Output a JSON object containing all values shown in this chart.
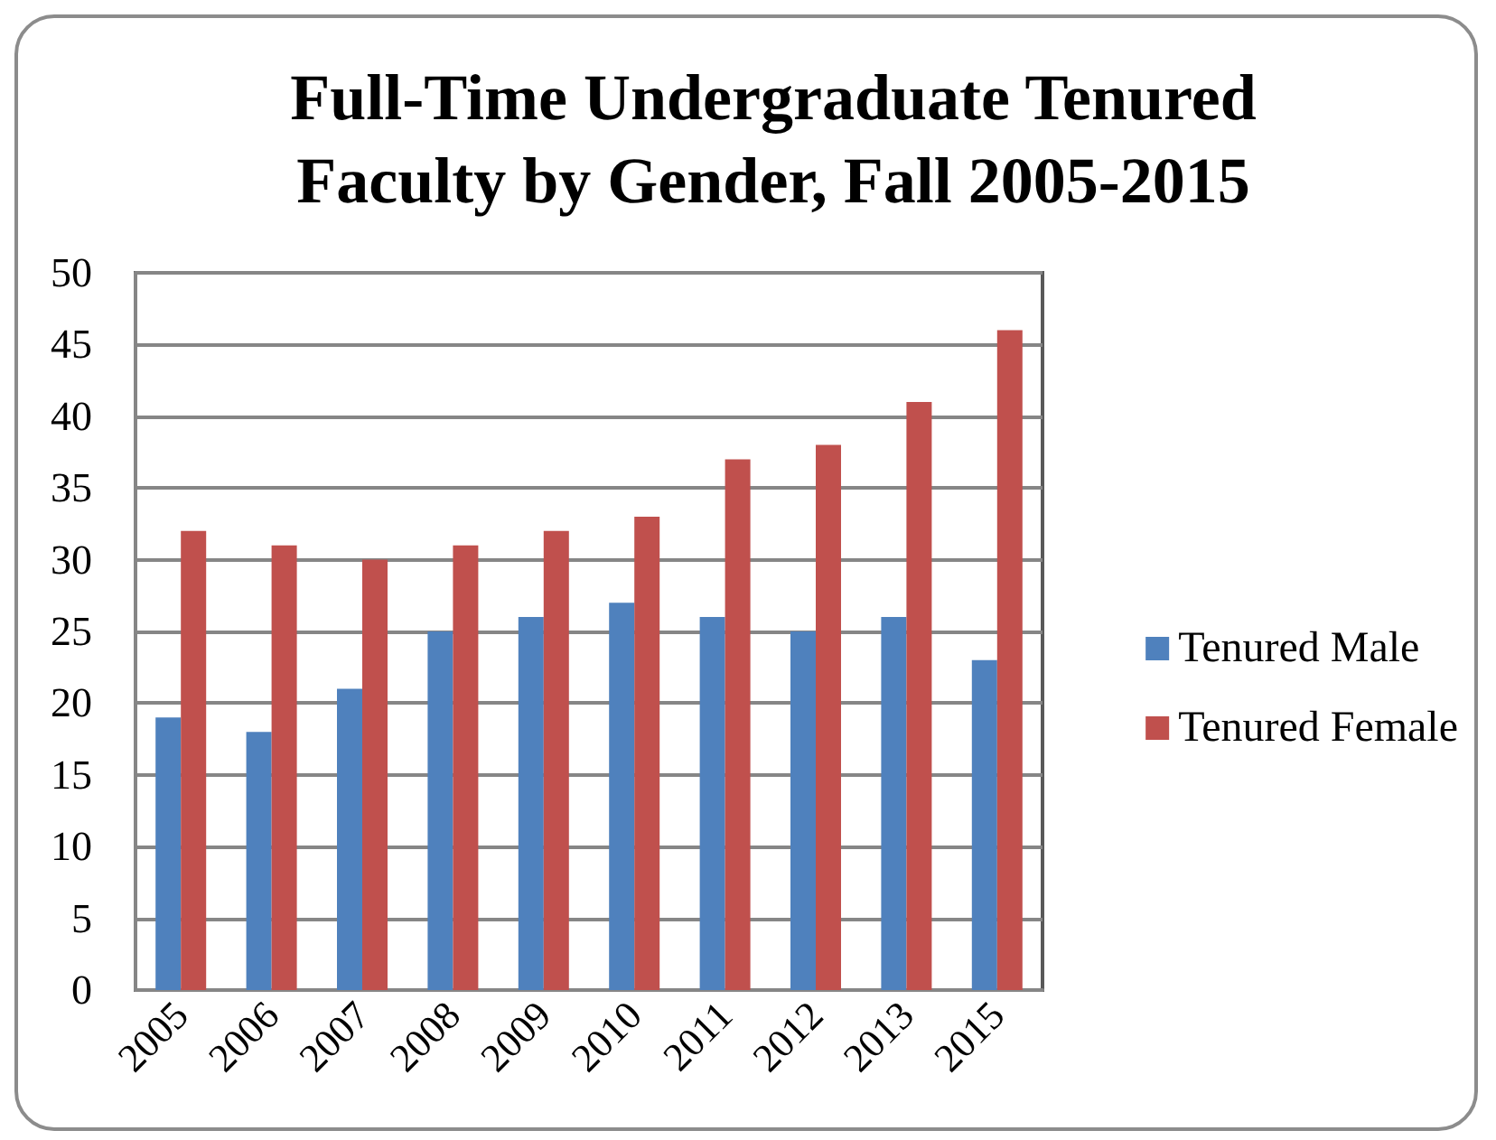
{
  "chart_data": {
    "type": "bar",
    "title": "Full-Time Undergraduate Tenured\nFaculty by Gender, Fall 2005-2015",
    "categories": [
      "2005",
      "2006",
      "2007",
      "2008",
      "2009",
      "2010",
      "2011",
      "2012",
      "2013",
      "2015"
    ],
    "series": [
      {
        "name": "Tenured Male",
        "color": "#4f81bd",
        "values": [
          19,
          18,
          21,
          25,
          26,
          27,
          26,
          25,
          26,
          23
        ]
      },
      {
        "name": "Tenured Female",
        "color": "#c0504d",
        "values": [
          32,
          31,
          30,
          31,
          32,
          33,
          37,
          38,
          41,
          46
        ]
      }
    ],
    "ylim": [
      0,
      50
    ],
    "yticks": [
      0,
      5,
      10,
      15,
      20,
      25,
      30,
      35,
      40,
      45,
      50
    ],
    "grid": "y",
    "legend": "right"
  }
}
